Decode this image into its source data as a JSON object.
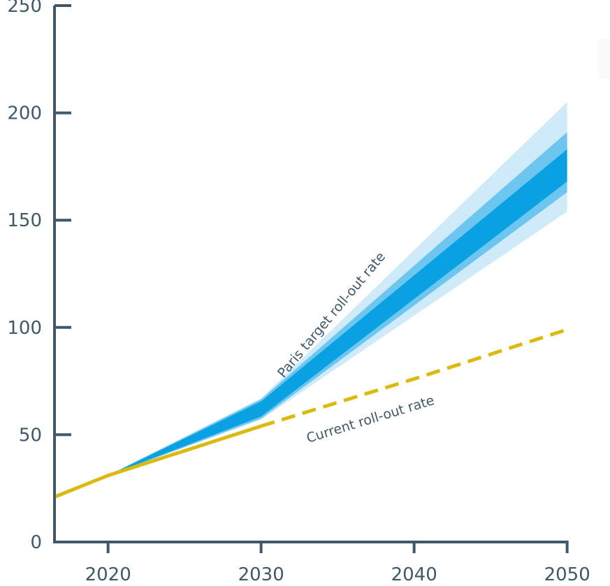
{
  "chart_data": {
    "type": "line",
    "title": "",
    "xlabel": "",
    "ylabel": "",
    "xlim": [
      2016.5,
      2050
    ],
    "ylim": [
      0,
      250
    ],
    "x_ticks": [
      "2020",
      "2030",
      "2040",
      "2050"
    ],
    "y_ticks": [
      "0",
      "50",
      "100",
      "150",
      "200",
      "250"
    ],
    "grid": false,
    "legend": "none",
    "colors": {
      "axis": "#3f586a",
      "current": "#dcb90f",
      "paris_core": "#0aa1e2",
      "paris_mid": "#6cc6ef",
      "paris_outer": "#cfeaf8"
    },
    "series": [
      {
        "name": "Current roll-out rate",
        "style": "solid-then-dashed",
        "solid_until": 2030,
        "x": [
          2016.5,
          2020,
          2030,
          2040,
          2050
        ],
        "y": [
          21,
          31,
          54,
          76,
          99
        ]
      },
      {
        "name": "Paris target roll-out rate",
        "type": "band",
        "x": [
          2020,
          2030,
          2050
        ],
        "outer_low": [
          31,
          57,
          154
        ],
        "outer_high": [
          31,
          67,
          205
        ],
        "mid_low": [
          31,
          57.5,
          163
        ],
        "mid_high": [
          31,
          66.5,
          191
        ],
        "core_low": [
          31,
          58.5,
          168
        ],
        "core_high": [
          31,
          65.5,
          183
        ]
      }
    ]
  }
}
